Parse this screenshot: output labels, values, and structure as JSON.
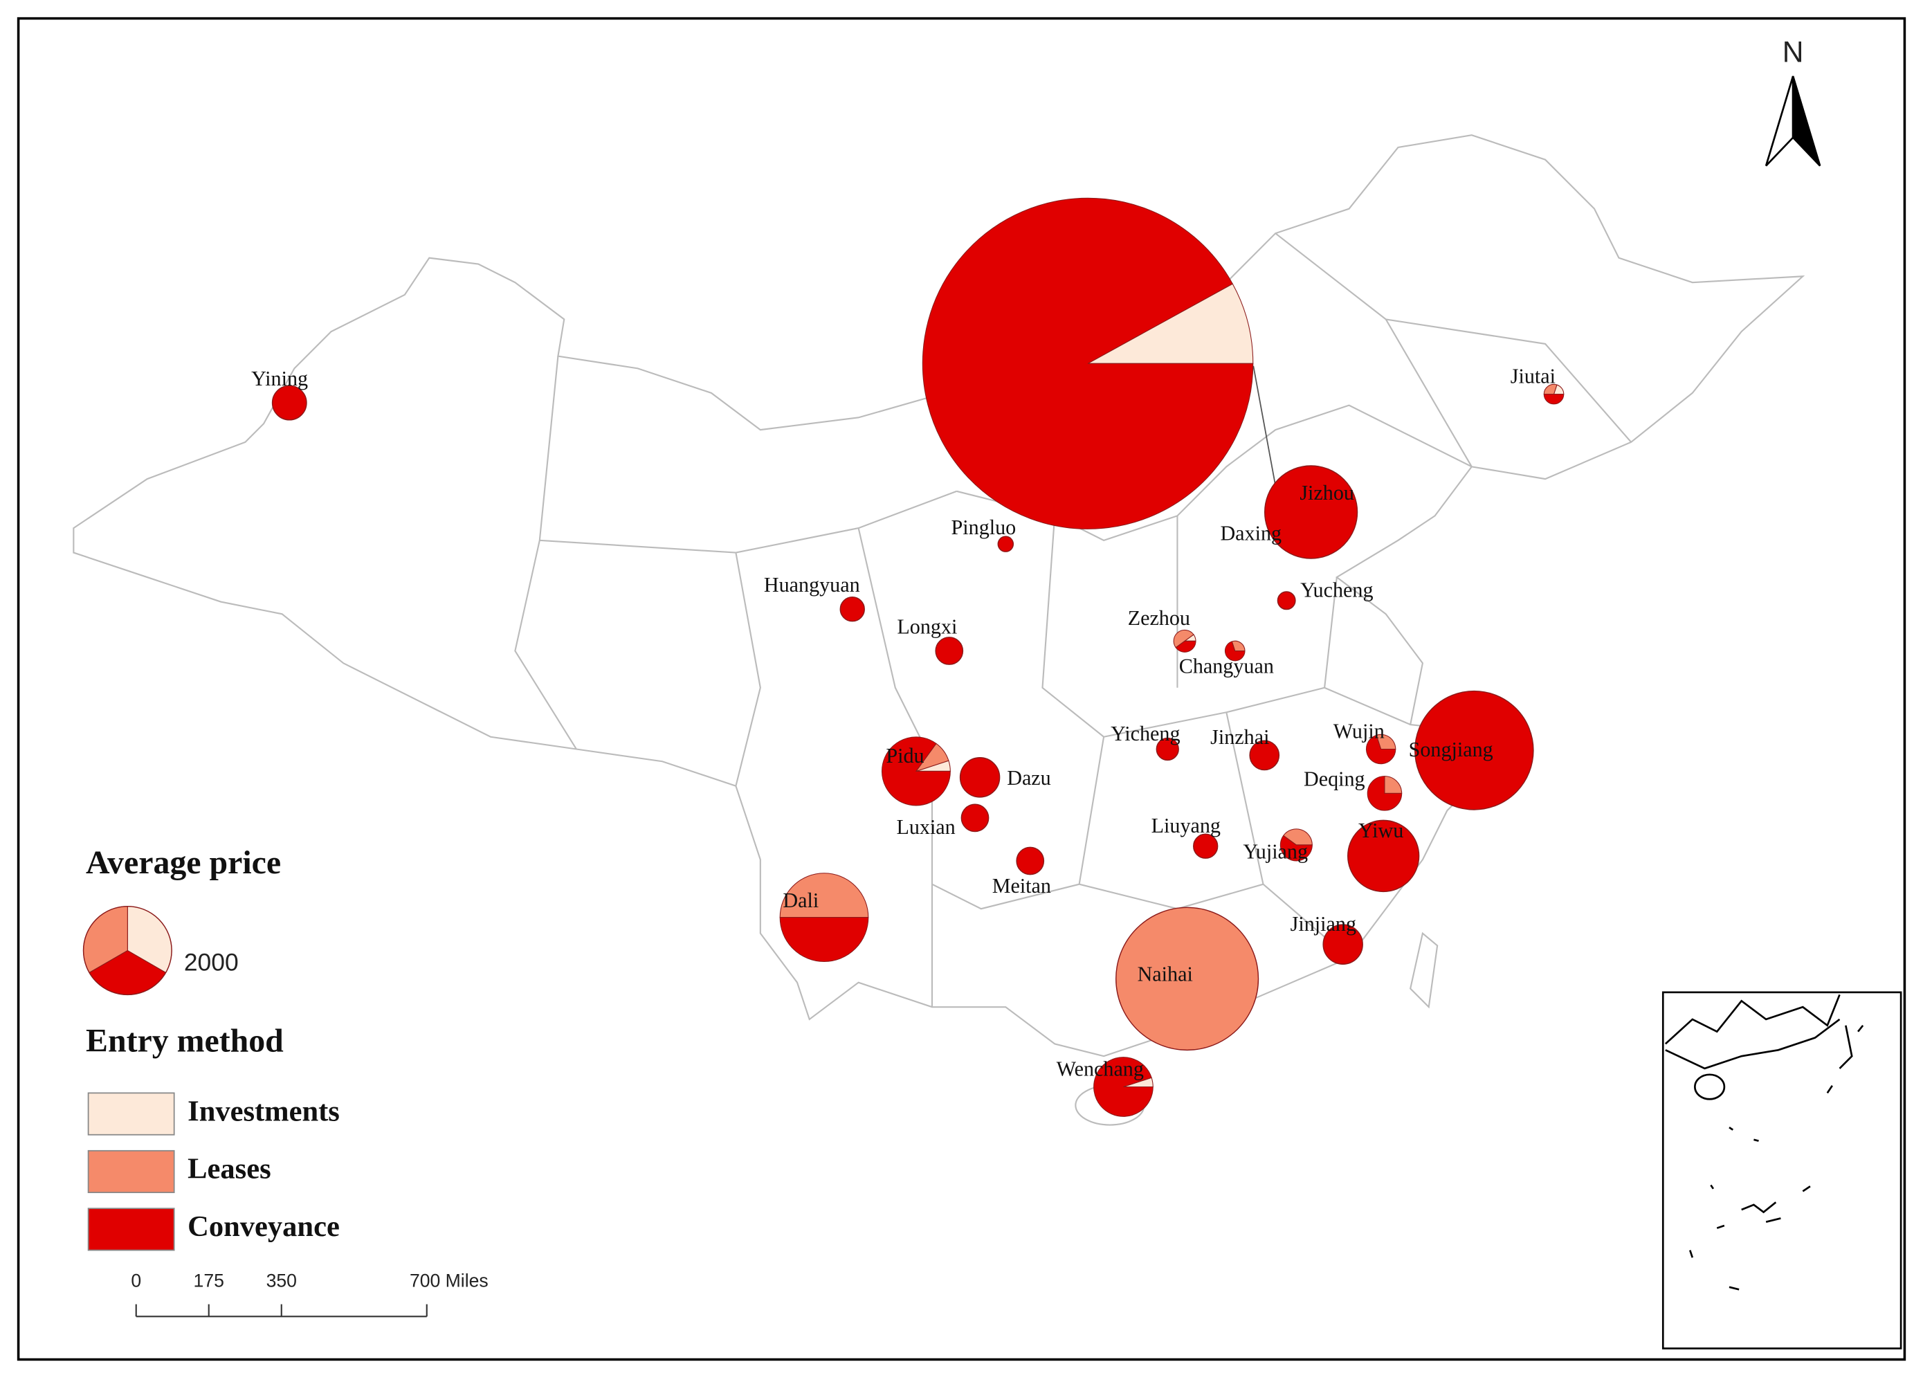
{
  "map": {
    "north": "N",
    "legend": {
      "size_title": "Average price",
      "size_value": 2000,
      "entry_title": "Entry method",
      "categories": [
        {
          "name": "Investments",
          "color": "#fde9d9"
        },
        {
          "name": "Leases",
          "color": "#f58a6a"
        },
        {
          "name": "Conveyance",
          "color": "#e00000"
        }
      ]
    },
    "scale_bar": {
      "ticks": [
        0,
        175,
        350,
        {
          "value": 700,
          "label": "700 Miles"
        }
      ]
    },
    "sites": [
      {
        "name": "Yining",
        "price": 300,
        "shares": [
          0,
          0,
          100
        ]
      },
      {
        "name": "Daxing",
        "price": 28000,
        "shares": [
          8,
          0,
          92
        ]
      },
      {
        "name": "Jiutai",
        "price": 100,
        "shares": [
          20,
          30,
          50
        ]
      },
      {
        "name": "Jizhou",
        "price": 2200,
        "shares": [
          0,
          0,
          100
        ]
      },
      {
        "name": "Pingluo",
        "price": 60,
        "shares": [
          0,
          0,
          100
        ]
      },
      {
        "name": "Huangyuan",
        "price": 150,
        "shares": [
          0,
          0,
          100
        ]
      },
      {
        "name": "Longxi",
        "price": 190,
        "shares": [
          0,
          0,
          100
        ]
      },
      {
        "name": "Yucheng",
        "price": 80,
        "shares": [
          0,
          0,
          100
        ]
      },
      {
        "name": "Zezhou",
        "price": 125,
        "shares": [
          10,
          50,
          40
        ]
      },
      {
        "name": "Changyuan",
        "price": 100,
        "shares": [
          0,
          30,
          70
        ]
      },
      {
        "name": "Yicheng",
        "price": 125,
        "shares": [
          0,
          0,
          100
        ]
      },
      {
        "name": "Jinzhai",
        "price": 220,
        "shares": [
          0,
          0,
          100
        ]
      },
      {
        "name": "Wujin",
        "price": 220,
        "shares": [
          0,
          30,
          70
        ]
      },
      {
        "name": "Songjiang",
        "price": 3600,
        "shares": [
          0,
          0,
          100
        ]
      },
      {
        "name": "Deqing",
        "price": 300,
        "shares": [
          0,
          25,
          75
        ]
      },
      {
        "name": "Pidu",
        "price": 1200,
        "shares": [
          5,
          10,
          85
        ]
      },
      {
        "name": "Dazu",
        "price": 400,
        "shares": [
          0,
          0,
          100
        ]
      },
      {
        "name": "Luxian",
        "price": 190,
        "shares": [
          0,
          0,
          100
        ]
      },
      {
        "name": "Meitan",
        "price": 190,
        "shares": [
          0,
          0,
          100
        ]
      },
      {
        "name": "Liuyang",
        "price": 150,
        "shares": [
          0,
          0,
          100
        ]
      },
      {
        "name": "Yujiang",
        "price": 260,
        "shares": [
          0,
          40,
          60
        ]
      },
      {
        "name": "Yiwu",
        "price": 1300,
        "shares": [
          0,
          0,
          100
        ]
      },
      {
        "name": "Dali",
        "price": 2000,
        "shares": [
          0,
          50,
          50
        ]
      },
      {
        "name": "Jinjiang",
        "price": 400,
        "shares": [
          0,
          0,
          100
        ]
      },
      {
        "name": "Naihai",
        "price": 5200,
        "shares": [
          0,
          100,
          0
        ]
      },
      {
        "name": "Wenchang",
        "price": 900,
        "shares": [
          5,
          0,
          95
        ]
      }
    ]
  }
}
